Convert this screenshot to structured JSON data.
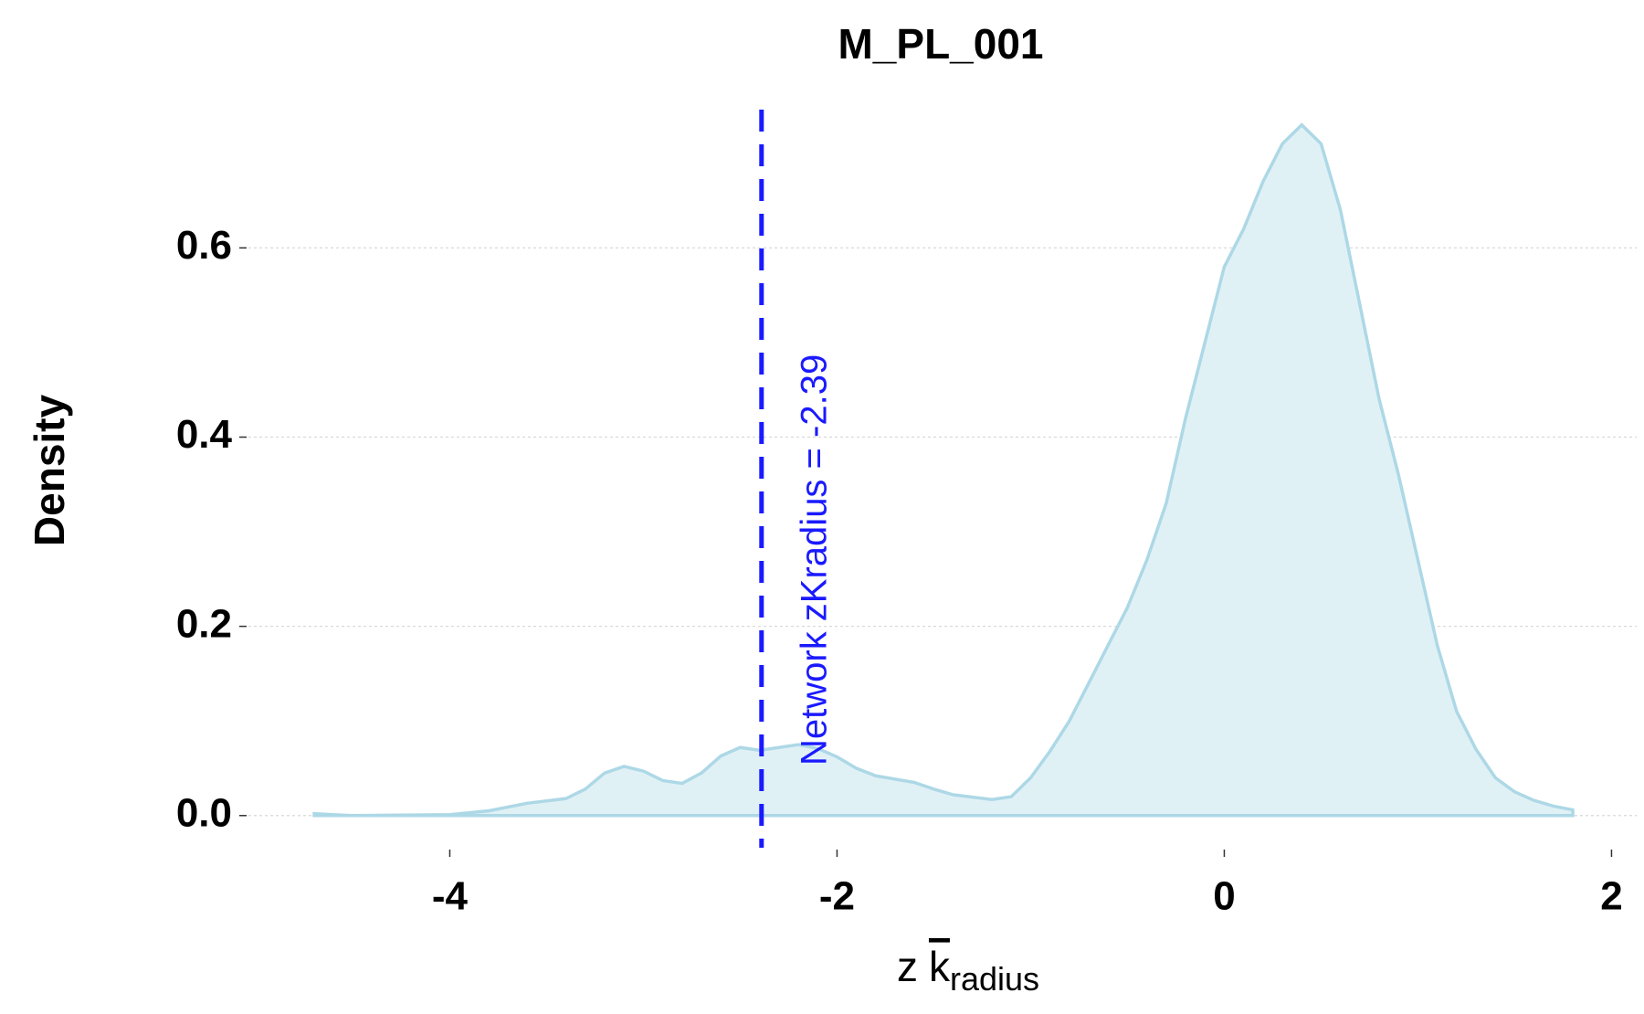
{
  "chart_data": {
    "type": "density",
    "title": "M_PL_001",
    "ylabel": "Density",
    "xlabel_main": "z",
    "xlabel_symbol": "k",
    "xlabel_sub": "radius",
    "x": [
      -4.7,
      -4.5,
      -4.0,
      -3.8,
      -3.6,
      -3.4,
      -3.3,
      -3.2,
      -3.1,
      -3.0,
      -2.9,
      -2.8,
      -2.7,
      -2.6,
      -2.5,
      -2.4,
      -2.3,
      -2.2,
      -2.1,
      -2.0,
      -1.9,
      -1.8,
      -1.6,
      -1.5,
      -1.4,
      -1.2,
      -1.1,
      -1.0,
      -0.9,
      -0.8,
      -0.7,
      -0.6,
      -0.5,
      -0.4,
      -0.3,
      -0.2,
      -0.1,
      0.0,
      0.1,
      0.2,
      0.3,
      0.4,
      0.5,
      0.6,
      0.7,
      0.8,
      0.9,
      1.0,
      1.1,
      1.2,
      1.3,
      1.4,
      1.5,
      1.6,
      1.7,
      1.8
    ],
    "values": [
      0.002,
      0.0,
      0.001,
      0.005,
      0.013,
      0.018,
      0.028,
      0.045,
      0.052,
      0.047,
      0.037,
      0.034,
      0.045,
      0.063,
      0.072,
      0.069,
      0.072,
      0.075,
      0.071,
      0.062,
      0.05,
      0.042,
      0.035,
      0.028,
      0.022,
      0.017,
      0.02,
      0.04,
      0.068,
      0.1,
      0.14,
      0.18,
      0.22,
      0.27,
      0.33,
      0.42,
      0.5,
      0.58,
      0.62,
      0.67,
      0.71,
      0.73,
      0.71,
      0.64,
      0.54,
      0.44,
      0.36,
      0.27,
      0.18,
      0.11,
      0.07,
      0.04,
      0.025,
      0.016,
      0.01,
      0.006
    ],
    "color": "#add8e6",
    "fill": "#e0f1f6",
    "xlim": [
      -5.04,
      2.13
    ],
    "ylim": [
      -0.034,
      0.75
    ],
    "xticks": [
      -4,
      -2,
      0,
      2
    ],
    "yticks": [
      {
        "value": 0,
        "label": "0.0"
      },
      {
        "value": 0.2,
        "label": "0.2"
      },
      {
        "value": 0.4,
        "label": "0.4"
      },
      {
        "value": 0.6,
        "label": "0.6"
      }
    ],
    "grid": true,
    "vline": {
      "x": -2.39,
      "color": "#1a1aff",
      "label": "Network zKradius = -2.39"
    }
  }
}
